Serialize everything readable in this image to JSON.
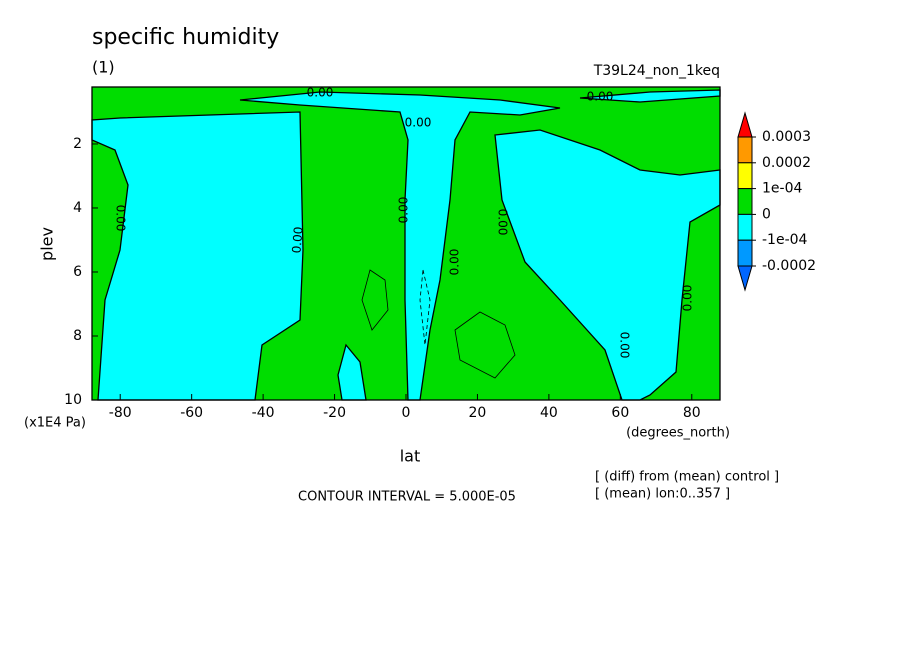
{
  "chart_data": {
    "type": "contour",
    "title": "specific humidity",
    "subtitle": "(1)",
    "run_label": "T39L24_non_1keq",
    "x_label": "lat",
    "x_units": "(degrees_north)",
    "y_label": "plev",
    "y_units": "(x1E4 Pa)",
    "xlim": [
      -87.9,
      87.9
    ],
    "xticks": [
      -80,
      -60,
      -40,
      -20,
      0,
      20,
      40,
      60,
      80
    ],
    "ylim": [
      10,
      0.22
    ],
    "yticks": [
      2,
      4,
      6,
      8,
      10
    ],
    "contour_labels": [
      "0.00",
      "0.00",
      "0.00",
      "0.00",
      "0.00",
      "0.00",
      "0.00",
      "0.00",
      "0.00",
      "0.00"
    ],
    "colorbar": {
      "ticks": [
        0.0003,
        0.0002,
        {
          "value": 0.0001,
          "label": "1e-04"
        },
        0,
        {
          "value": -0.0001,
          "label": "-1e-04"
        },
        -0.0002
      ],
      "colors": [
        "#ff0000",
        "#ff9900",
        "#ffff00",
        "#00dd00",
        "#00ffff",
        "#0099ff",
        "#0066ff"
      ]
    },
    "notes": [
      "CONTOUR INTERVAL = 5.000E-05",
      "[ (diff) from (mean) control ]",
      "[ (mean) lon:0..357 ]"
    ]
  }
}
